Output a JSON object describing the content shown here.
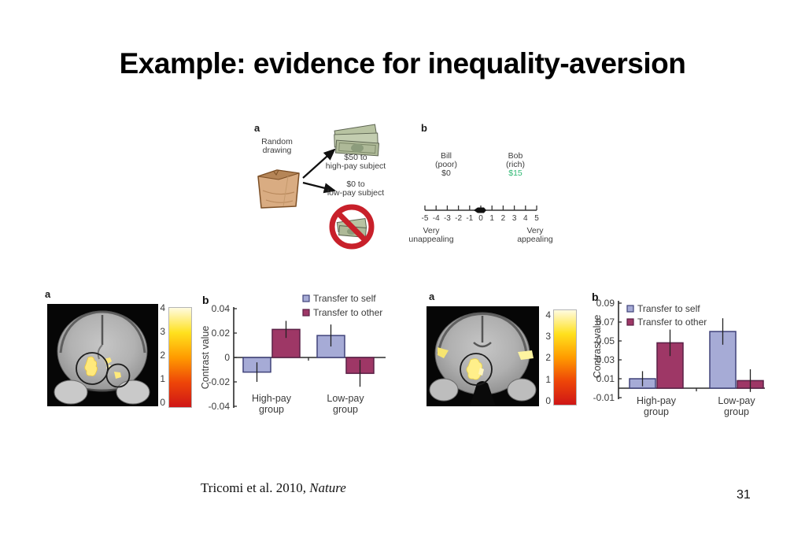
{
  "slide": {
    "title": "Example: evidence for inequality-aversion",
    "citation_prefix": "Tricomi et al. 2010, ",
    "citation_source": "Nature",
    "page_number": "31"
  },
  "figure_top": {
    "panel_a_label": "a",
    "panel_b_label": "b",
    "random_drawing_line1": "Random",
    "random_drawing_line2": "drawing",
    "high_pay_caption_line1": "$50 to",
    "high_pay_caption_line2": "high-pay subject",
    "low_pay_caption_line1": "$0 to",
    "low_pay_caption_line2": "low-pay subject",
    "bill": {
      "name": "Bill",
      "status": "(poor)",
      "amount": "$0"
    },
    "bob": {
      "name": "Bob",
      "status": "(rich)",
      "amount": "$15",
      "amount_color": "#2eb873"
    },
    "scale": {
      "tick_labels": [
        "-5",
        "-4",
        "-3",
        "-2",
        "-1",
        "0",
        "1",
        "2",
        "3",
        "4",
        "5"
      ],
      "marker_value": 0,
      "left_label_line1": "Very",
      "left_label_line2": "unappealing",
      "right_label_line1": "Very",
      "right_label_line2": "appealing"
    }
  },
  "figure_left": {
    "panel_a_label": "a",
    "colorbar": {
      "ticks": [
        "4",
        "3",
        "2",
        "1",
        "0"
      ],
      "gradient": [
        "#fffbe0",
        "#ffe11e",
        "#ff9b00",
        "#ee4608",
        "#cf1616"
      ]
    }
  },
  "figure_right": {
    "panel_a_label": "a",
    "colorbar": {
      "ticks": [
        "4",
        "3",
        "2",
        "1",
        "0"
      ],
      "gradient": [
        "#fffbe0",
        "#ffe11e",
        "#ff9b00",
        "#ee4608",
        "#cf1616"
      ]
    }
  },
  "chart_data": [
    {
      "id": "chart-left",
      "type": "bar",
      "panel_label": "b",
      "ylabel": "Contrast value",
      "categories": [
        [
          "High-pay",
          "group"
        ],
        [
          "Low-pay",
          "group"
        ]
      ],
      "series": [
        {
          "name": "Transfer to self",
          "color": "#a6abd6",
          "border": "#40437a",
          "values": [
            -0.012,
            0.018
          ],
          "errors": [
            0.008,
            0.009
          ]
        },
        {
          "name": "Transfer to other",
          "color": "#9e3766",
          "border": "#5a2046",
          "values": [
            0.023,
            -0.013
          ],
          "errors": [
            0.007,
            0.011
          ]
        }
      ],
      "ylim": [
        -0.04,
        0.04
      ],
      "yticks": [
        0.04,
        0.02,
        0,
        -0.02,
        -0.04
      ],
      "legend_position": "top-right",
      "grid": false
    },
    {
      "id": "chart-right",
      "type": "bar",
      "panel_label": "b",
      "ylabel": "Contrast value",
      "categories": [
        [
          "High-pay",
          "group"
        ],
        [
          "Low-pay",
          "group"
        ]
      ],
      "series": [
        {
          "name": "Transfer to self",
          "color": "#a6abd6",
          "border": "#40437a",
          "values": [
            0.01,
            0.06
          ],
          "errors": [
            0.008,
            0.014
          ]
        },
        {
          "name": "Transfer to other",
          "color": "#9e3766",
          "border": "#5a2046",
          "values": [
            0.048,
            0.008
          ],
          "errors": [
            0.014,
            0.012
          ]
        }
      ],
      "ylim": [
        -0.01,
        0.09
      ],
      "yticks": [
        0.09,
        0.07,
        0.05,
        0.03,
        0.01,
        -0.01
      ],
      "legend_position": "top-left",
      "grid": false
    }
  ]
}
